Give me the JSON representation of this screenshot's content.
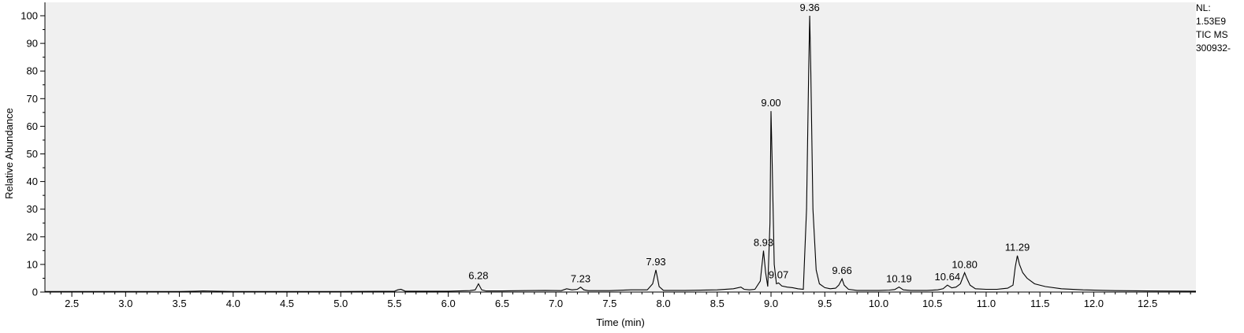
{
  "chart_data": {
    "type": "line",
    "title": "",
    "xlabel": "Time (min)",
    "ylabel": "Relative Abundance",
    "xlim": [
      2.25,
      12.95
    ],
    "ylim": [
      0,
      100
    ],
    "grid": false,
    "x_ticks": [
      "2.5",
      "3.0",
      "3.5",
      "4.0",
      "4.5",
      "5.0",
      "5.5",
      "6.0",
      "6.5",
      "7.0",
      "7.5",
      "8.0",
      "8.5",
      "9.0",
      "9.5",
      "10.0",
      "10.5",
      "11.0",
      "11.5",
      "12.0",
      "12.5"
    ],
    "y_ticks": [
      "0",
      "10",
      "20",
      "30",
      "40",
      "50",
      "60",
      "70",
      "80",
      "90",
      "100"
    ],
    "info": [
      "NL:",
      "1.53E9",
      "TIC  MS",
      "300932-"
    ],
    "peaks": [
      {
        "label": "6.28",
        "x": 6.28,
        "y": 3.0
      },
      {
        "label": "7.23",
        "x": 7.23,
        "y": 1.8
      },
      {
        "label": "7.93",
        "x": 7.93,
        "y": 8.0
      },
      {
        "label": "8.93",
        "x": 8.93,
        "y": 15.0
      },
      {
        "label": "9.00",
        "x": 9.0,
        "y": 65.5
      },
      {
        "label": "9.07",
        "x": 9.07,
        "y": 3.3
      },
      {
        "label": "9.36",
        "x": 9.36,
        "y": 100
      },
      {
        "label": "9.66",
        "x": 9.66,
        "y": 4.8
      },
      {
        "label": "10.19",
        "x": 10.19,
        "y": 1.8
      },
      {
        "label": "10.64",
        "x": 10.64,
        "y": 2.5
      },
      {
        "label": "10.80",
        "x": 10.8,
        "y": 7.0
      },
      {
        "label": "11.29",
        "x": 11.29,
        "y": 13.2
      }
    ],
    "series": [
      {
        "color": "#000000",
        "x": [
          2.25,
          2.5,
          3.0,
          3.5,
          3.65,
          3.72,
          3.85,
          4.0,
          4.5,
          5.0,
          5.5,
          5.53,
          5.56,
          5.6,
          6.0,
          6.2,
          6.25,
          6.28,
          6.31,
          6.35,
          6.5,
          6.7,
          6.9,
          7.05,
          7.1,
          7.15,
          7.2,
          7.23,
          7.26,
          7.3,
          7.5,
          7.7,
          7.85,
          7.9,
          7.93,
          7.96,
          8.0,
          8.2,
          8.5,
          8.65,
          8.72,
          8.75,
          8.8,
          8.85,
          8.9,
          8.93,
          8.95,
          8.97,
          8.99,
          9.0,
          9.01,
          9.03,
          9.05,
          9.07,
          9.1,
          9.15,
          9.2,
          9.25,
          9.3,
          9.33,
          9.35,
          9.36,
          9.37,
          9.39,
          9.42,
          9.45,
          9.5,
          9.55,
          9.6,
          9.63,
          9.66,
          9.68,
          9.72,
          9.8,
          9.9,
          10.0,
          10.1,
          10.15,
          10.19,
          10.23,
          10.3,
          10.45,
          10.55,
          10.6,
          10.64,
          10.68,
          10.72,
          10.76,
          10.8,
          10.82,
          10.85,
          10.9,
          11.0,
          11.1,
          11.2,
          11.25,
          11.27,
          11.29,
          11.31,
          11.34,
          11.38,
          11.45,
          11.55,
          11.7,
          11.9,
          12.2,
          12.5,
          12.95
        ],
        "y": [
          0.2,
          0.2,
          0.2,
          0.2,
          0.3,
          0.4,
          0.3,
          0.2,
          0.2,
          0.2,
          0.3,
          0.8,
          1.0,
          0.3,
          0.3,
          0.5,
          0.8,
          3.0,
          0.8,
          0.4,
          0.4,
          0.5,
          0.6,
          0.5,
          1.2,
          0.8,
          1.0,
          1.8,
          0.8,
          0.5,
          0.5,
          0.8,
          0.8,
          3.0,
          8.0,
          2.0,
          0.6,
          0.6,
          0.8,
          1.2,
          1.8,
          1.0,
          0.8,
          1.0,
          4.0,
          15.0,
          7.0,
          2.0,
          25.0,
          65.5,
          48.0,
          10.0,
          3.0,
          3.3,
          2.2,
          1.8,
          1.6,
          1.2,
          1.0,
          30.0,
          80.0,
          100.0,
          80.0,
          30.0,
          8.0,
          3.0,
          1.6,
          1.2,
          1.4,
          2.5,
          4.8,
          2.5,
          1.0,
          0.6,
          0.6,
          0.6,
          0.7,
          0.9,
          1.8,
          0.8,
          0.6,
          0.6,
          0.8,
          1.2,
          2.5,
          1.5,
          1.8,
          3.0,
          7.0,
          5.0,
          2.5,
          1.2,
          1.0,
          1.0,
          1.4,
          2.5,
          9.0,
          13.2,
          10.0,
          7.0,
          5.0,
          3.0,
          2.0,
          1.2,
          0.8,
          0.5,
          0.4,
          0.3
        ]
      }
    ]
  }
}
